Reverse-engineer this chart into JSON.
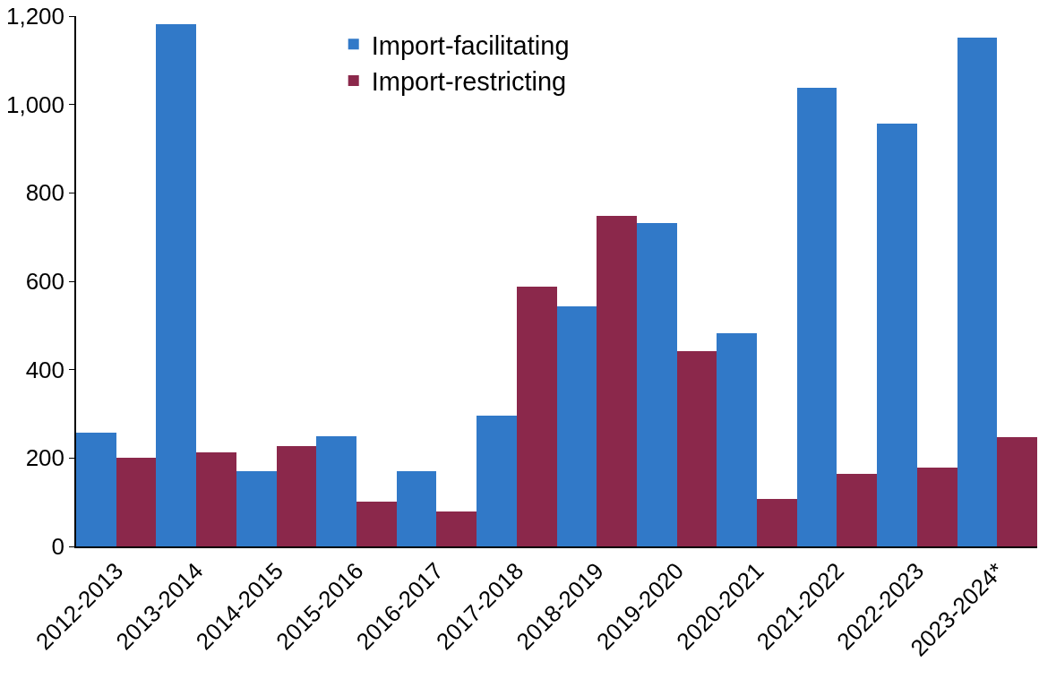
{
  "chart_data": {
    "type": "bar",
    "categories": [
      "2012-2013",
      "2013-2014",
      "2014-2015",
      "2015-2016",
      "2016-2017",
      "2017-2018",
      "2018-2019",
      "2019-2020",
      "2020-2021",
      "2021-2022",
      "2022-2023",
      "2023-2024*"
    ],
    "series": [
      {
        "name": "Import-facilitating",
        "color": "#3179c8",
        "values": [
          258,
          1182,
          170,
          250,
          170,
          296,
          544,
          731,
          483,
          1038,
          956,
          1151
        ]
      },
      {
        "name": "Import-restricting",
        "color": "#8b284b",
        "values": [
          201,
          213,
          227,
          102,
          79,
          587,
          747,
          441,
          108,
          164,
          179,
          248
        ]
      }
    ],
    "ylim": [
      0,
      1200
    ],
    "yticks": [
      0,
      200,
      400,
      600,
      800,
      {
        "value": 1000,
        "label": "1,000"
      },
      {
        "value": 1200,
        "label": "1,200"
      }
    ],
    "grid": false,
    "legend": "top left"
  }
}
